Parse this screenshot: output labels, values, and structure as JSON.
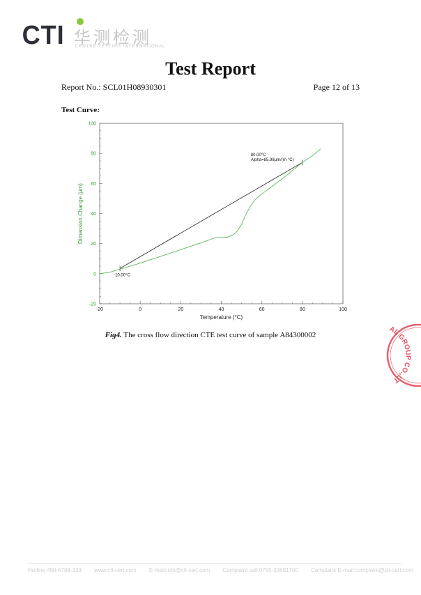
{
  "header": {
    "logo_text": "CTI",
    "logo_cn": "华测检测",
    "logo_en": "CENTRE TESTING INTERNATIONAL",
    "title": "Test Report",
    "report_no": "Report No.: SCL01H08930301",
    "page": "Page 12 of 13"
  },
  "section_title": "Test Curve:",
  "caption": {
    "fig": "Fig4.",
    "text": " The cross flow direction CTE test curve of sample A84300002"
  },
  "chart_data": {
    "type": "line",
    "xlabel": "Temperature (°C)",
    "ylabel": "Dimension Change (μm)",
    "xlim": [
      -20,
      100
    ],
    "ylim": [
      -20,
      100
    ],
    "xticks": [
      -20,
      0,
      20,
      40,
      60,
      80,
      100
    ],
    "yticks": [
      -20,
      0,
      20,
      40,
      60,
      80,
      100
    ],
    "curve_color": "#5cb85c",
    "axis_label_color": "#3a9a3a",
    "series": [
      {
        "x": [
          -20,
          -15,
          -10,
          0,
          10,
          20,
          30,
          37,
          40,
          43,
          46,
          48,
          50,
          52,
          54,
          56,
          58,
          60,
          65,
          70,
          75,
          80,
          85,
          89
        ],
        "y": [
          0,
          1,
          3,
          7,
          11.5,
          16,
          20.5,
          24,
          24,
          24.3,
          26,
          28.5,
          33,
          39,
          44,
          48,
          51,
          53,
          58,
          63,
          68.5,
          74,
          78.5,
          83
        ]
      }
    ],
    "fit_line": {
      "x": [
        -10,
        80
      ],
      "y": [
        3.5,
        74
      ],
      "color": "#333333"
    },
    "annotations": [
      {
        "text": "-10.00°C",
        "x": -10,
        "y": 3.5
      },
      {
        "text": "80.00°C",
        "x": 80,
        "y": 74
      },
      {
        "text": "Alpha=85.98μm/(m·°C)",
        "x": 80,
        "y": 74
      }
    ]
  },
  "stamp_text": "AL GROUP CO.,LT",
  "footer": [
    "Hotline:400-6788-333",
    "www.cti-cert.com",
    "E-mail:info@cti-cert.com",
    "Complaint call:0755-33681700",
    "Complaint E-mail:complaint@cti-cert.com"
  ]
}
